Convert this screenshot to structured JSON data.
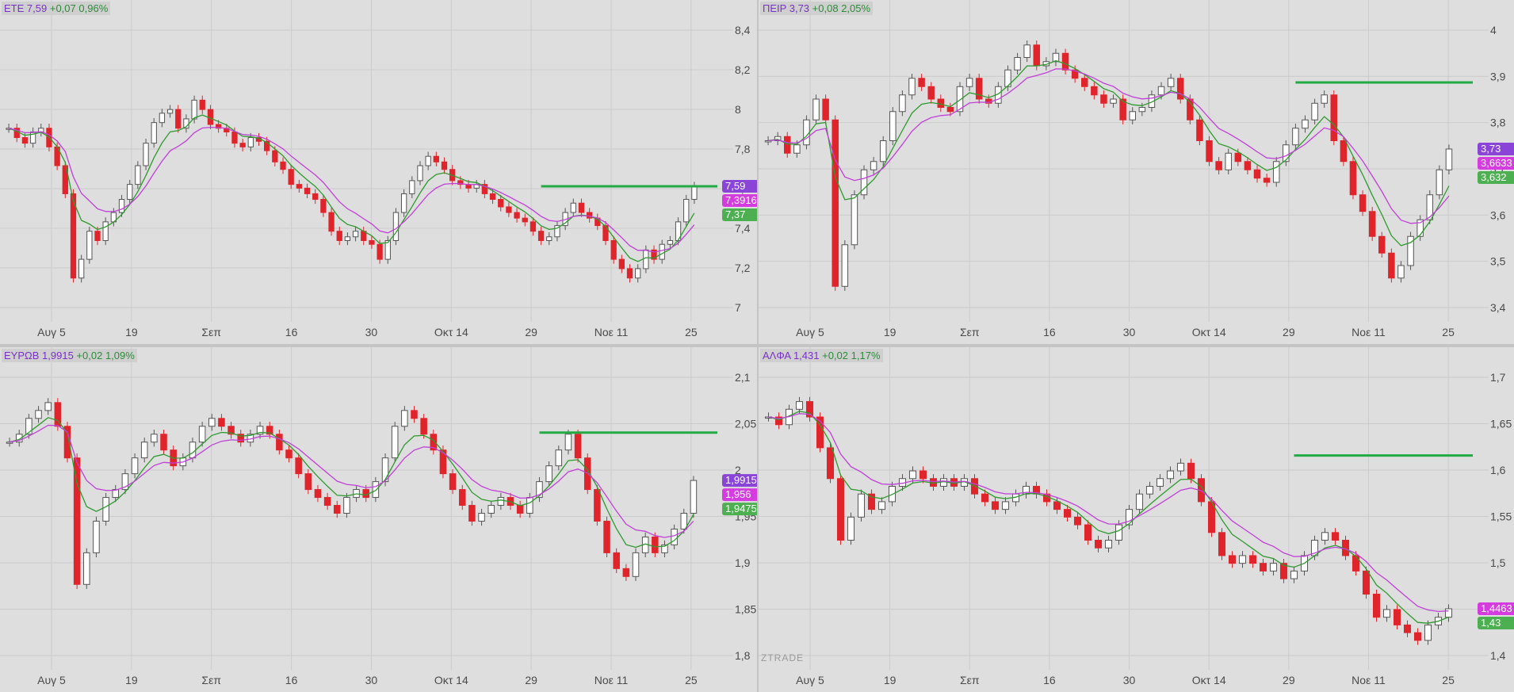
{
  "watermark": "ZTRADE",
  "colors": {
    "up": "#ffffff",
    "down": "#e0242b",
    "fast_ma": "#2e9a2e",
    "slow_ma": "#c040d8",
    "level": "#22aa44",
    "tag_purple": "#8a45d8",
    "tag_magenta": "#d43ce0",
    "tag_green": "#4caf50",
    "grid": "#cbcbcb"
  },
  "x_ticks": [
    "Αυγ 5",
    "19",
    "Σεπ",
    "16",
    "30",
    "Οκτ 14",
    "29",
    "Νοε 11",
    "25"
  ],
  "panels": [
    {
      "symbol": "ΕΤΕ",
      "price": "7,59",
      "change": "+0,07",
      "pct": "0,96%",
      "y_ticks": [
        "8,4",
        "8,2",
        "8",
        "7,8",
        "7,6",
        "7,4",
        "7,2",
        "7"
      ],
      "tags": [
        {
          "text": "7,59",
          "color": "purple"
        },
        {
          "text": "7,3916",
          "color": "magenta"
        },
        {
          "text": "7,37",
          "color": "green"
        }
      ]
    },
    {
      "symbol": "ΠΕΙΡ",
      "price": "3,73",
      "change": "+0,08",
      "pct": "2,05%",
      "y_ticks": [
        "4",
        "3,9",
        "3,8",
        "3,7",
        "3,6",
        "3,5",
        "3,4"
      ],
      "tags": [
        {
          "text": "3,73",
          "color": "purple"
        },
        {
          "text": "3,6633",
          "color": "magenta"
        },
        {
          "text": "3,632",
          "color": "green"
        }
      ]
    },
    {
      "symbol": "ΕΥΡΩΒ",
      "price": "1,9915",
      "change": "+0,02",
      "pct": "1,09%",
      "y_ticks": [
        "2,1",
        "2,05",
        "2",
        "1,95",
        "1,9",
        "1,85",
        "1,8"
      ],
      "tags": [
        {
          "text": "1,9915",
          "color": "purple"
        },
        {
          "text": "1,956",
          "color": "magenta"
        },
        {
          "text": "1,9475",
          "color": "green"
        }
      ]
    },
    {
      "symbol": "ΑΛΦΑ",
      "price": "1,431",
      "change": "+0,02",
      "pct": "1,17%",
      "y_ticks": [
        "1,7",
        "1,65",
        "1,6",
        "1,55",
        "1,5",
        "1,45",
        "1,4"
      ],
      "tags": [
        {
          "text": "1,4463",
          "color": "magenta"
        },
        {
          "text": "1,43",
          "color": "green"
        }
      ]
    }
  ],
  "chart_data": [
    {
      "type": "candlestick",
      "title": "ΕΤΕ 7,59 +0,07 0,96%",
      "ylim": [
        6.9,
        8.5
      ],
      "resistance": 7.59,
      "closes": [
        7.9,
        7.85,
        7.82,
        7.88,
        7.9,
        7.8,
        7.7,
        7.55,
        7.1,
        7.2,
        7.35,
        7.3,
        7.4,
        7.45,
        7.52,
        7.6,
        7.7,
        7.82,
        7.93,
        7.98,
        8.0,
        7.9,
        7.95,
        8.05,
        8.0,
        7.92,
        7.9,
        7.88,
        7.82,
        7.8,
        7.85,
        7.83,
        7.78,
        7.72,
        7.68,
        7.6,
        7.58,
        7.55,
        7.52,
        7.45,
        7.35,
        7.3,
        7.32,
        7.35,
        7.3,
        7.28,
        7.2,
        7.3,
        7.45,
        7.55,
        7.62,
        7.7,
        7.75,
        7.72,
        7.68,
        7.62,
        7.6,
        7.58,
        7.6,
        7.55,
        7.52,
        7.48,
        7.45,
        7.42,
        7.4,
        7.35,
        7.3,
        7.32,
        7.38,
        7.45,
        7.5,
        7.45,
        7.42,
        7.38,
        7.3,
        7.2,
        7.15,
        7.1,
        7.15,
        7.25,
        7.2,
        7.28,
        7.3,
        7.4,
        7.52,
        7.59
      ]
    },
    {
      "type": "candlestick",
      "title": "ΠΕΙΡ 3,73 +0,08 2,05%",
      "ylim": [
        3.33,
        4.05
      ],
      "resistance": 3.89,
      "closes": [
        3.75,
        3.76,
        3.72,
        3.74,
        3.8,
        3.85,
        3.8,
        3.4,
        3.5,
        3.62,
        3.68,
        3.7,
        3.75,
        3.82,
        3.86,
        3.9,
        3.88,
        3.85,
        3.83,
        3.82,
        3.88,
        3.9,
        3.85,
        3.84,
        3.88,
        3.92,
        3.95,
        3.98,
        3.93,
        3.94,
        3.96,
        3.92,
        3.9,
        3.88,
        3.86,
        3.84,
        3.85,
        3.8,
        3.82,
        3.83,
        3.86,
        3.88,
        3.9,
        3.85,
        3.8,
        3.75,
        3.7,
        3.68,
        3.72,
        3.7,
        3.68,
        3.66,
        3.65,
        3.7,
        3.74,
        3.78,
        3.8,
        3.84,
        3.86,
        3.75,
        3.7,
        3.62,
        3.58,
        3.52,
        3.48,
        3.42,
        3.45,
        3.52,
        3.56,
        3.62,
        3.68,
        3.73
      ]
    },
    {
      "type": "candlestick",
      "title": "ΕΥΡΩΒ 1,9915 +0,02 1,09%",
      "ylim": [
        1.76,
        2.14
      ],
      "resistance": 2.052,
      "closes": [
        2.04,
        2.05,
        2.07,
        2.08,
        2.09,
        2.06,
        2.02,
        1.86,
        1.9,
        1.94,
        1.97,
        1.98,
        2.0,
        2.02,
        2.04,
        2.05,
        2.03,
        2.01,
        2.02,
        2.04,
        2.06,
        2.07,
        2.06,
        2.05,
        2.04,
        2.05,
        2.06,
        2.05,
        2.03,
        2.02,
        2.0,
        1.98,
        1.97,
        1.96,
        1.95,
        1.97,
        1.98,
        1.97,
        1.99,
        2.02,
        2.06,
        2.08,
        2.07,
        2.05,
        2.03,
        2.0,
        1.98,
        1.96,
        1.94,
        1.95,
        1.96,
        1.97,
        1.96,
        1.95,
        1.97,
        1.99,
        2.01,
        2.03,
        2.05,
        2.02,
        1.98,
        1.94,
        1.9,
        1.88,
        1.87,
        1.9,
        1.92,
        1.9,
        1.91,
        1.93,
        1.95,
        1.9915
      ]
    },
    {
      "type": "candlestick",
      "title": "ΑΛΦΑ 1,431 +0,02 1,17%",
      "ylim": [
        1.36,
        1.75
      ],
      "resistance": 1.63,
      "closes": [
        1.68,
        1.67,
        1.69,
        1.7,
        1.68,
        1.64,
        1.6,
        1.52,
        1.55,
        1.58,
        1.56,
        1.57,
        1.59,
        1.6,
        1.61,
        1.6,
        1.59,
        1.6,
        1.59,
        1.6,
        1.58,
        1.57,
        1.56,
        1.57,
        1.58,
        1.59,
        1.58,
        1.57,
        1.56,
        1.55,
        1.54,
        1.52,
        1.51,
        1.52,
        1.54,
        1.56,
        1.58,
        1.59,
        1.6,
        1.61,
        1.62,
        1.6,
        1.57,
        1.53,
        1.5,
        1.49,
        1.5,
        1.49,
        1.48,
        1.49,
        1.47,
        1.48,
        1.5,
        1.52,
        1.53,
        1.52,
        1.5,
        1.48,
        1.45,
        1.42,
        1.43,
        1.41,
        1.4,
        1.39,
        1.41,
        1.42,
        1.431
      ]
    }
  ]
}
